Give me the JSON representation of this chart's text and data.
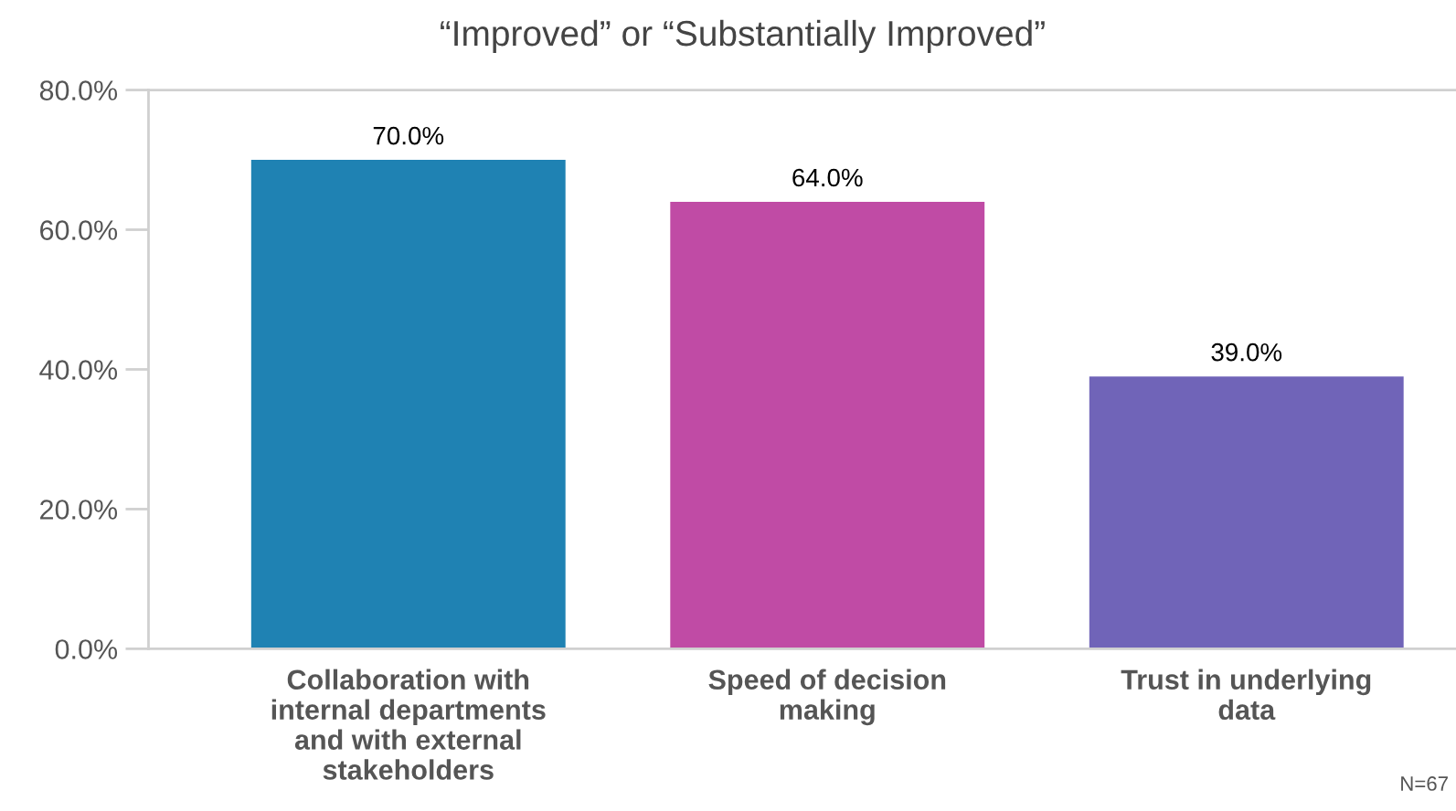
{
  "chart_data": {
    "type": "bar",
    "title": "“Improved” or “Substantially Improved”",
    "categories": [
      "Collaboration with\ninternal departments\nand with external\nstakeholders",
      "Speed of decision\nmaking",
      "Trust in underlying\ndata"
    ],
    "values": [
      70.0,
      64.0,
      39.0
    ],
    "colors": [
      "#1f82b3",
      "#c04ba5",
      "#7064b8"
    ],
    "ylim": [
      0,
      80
    ],
    "yticks": [
      {
        "value": 0,
        "label": "0.0%"
      },
      {
        "value": 20,
        "label": "20.0%"
      },
      {
        "value": 40,
        "label": "40.0%"
      },
      {
        "value": 60,
        "label": "60.0%"
      },
      {
        "value": 80,
        "label": "80.0%"
      }
    ],
    "value_labels": [
      "70.0%",
      "64.0%",
      "39.0%"
    ],
    "annotations": [
      "N=67"
    ],
    "grid": false,
    "legend": false
  }
}
